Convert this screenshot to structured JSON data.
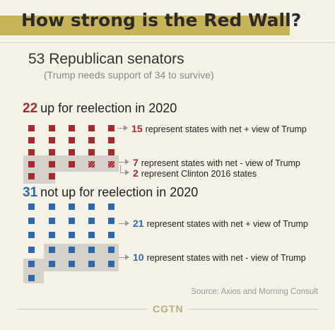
{
  "title": "How strong is the Red Wall?",
  "subtitle": "53 Republican senators",
  "subnote": "(Trump needs support of 34 to survive)",
  "group_up": {
    "count": "22",
    "label": "up for reelection in 2020",
    "callouts": [
      {
        "num": "15",
        "text": "represent states with net + view of Trump"
      },
      {
        "num": "7",
        "text": "represent states with net - view of Trump"
      },
      {
        "num": "2",
        "text": "represent Clinton 2016 states"
      }
    ]
  },
  "group_not_up": {
    "count": "31",
    "label": "not up for reelection in 2020",
    "callouts": [
      {
        "num": "21",
        "text": "represent states with net + view of Trump"
      },
      {
        "num": "10",
        "text": "represent states with net - view of Trump"
      }
    ]
  },
  "source": "Source: Axios and Morning Consult",
  "logo": "CGTN",
  "colors": {
    "red": "#a32b2e",
    "blue": "#2f68a8",
    "gold": "#c9b35a",
    "background": "#f4f1e6"
  }
}
